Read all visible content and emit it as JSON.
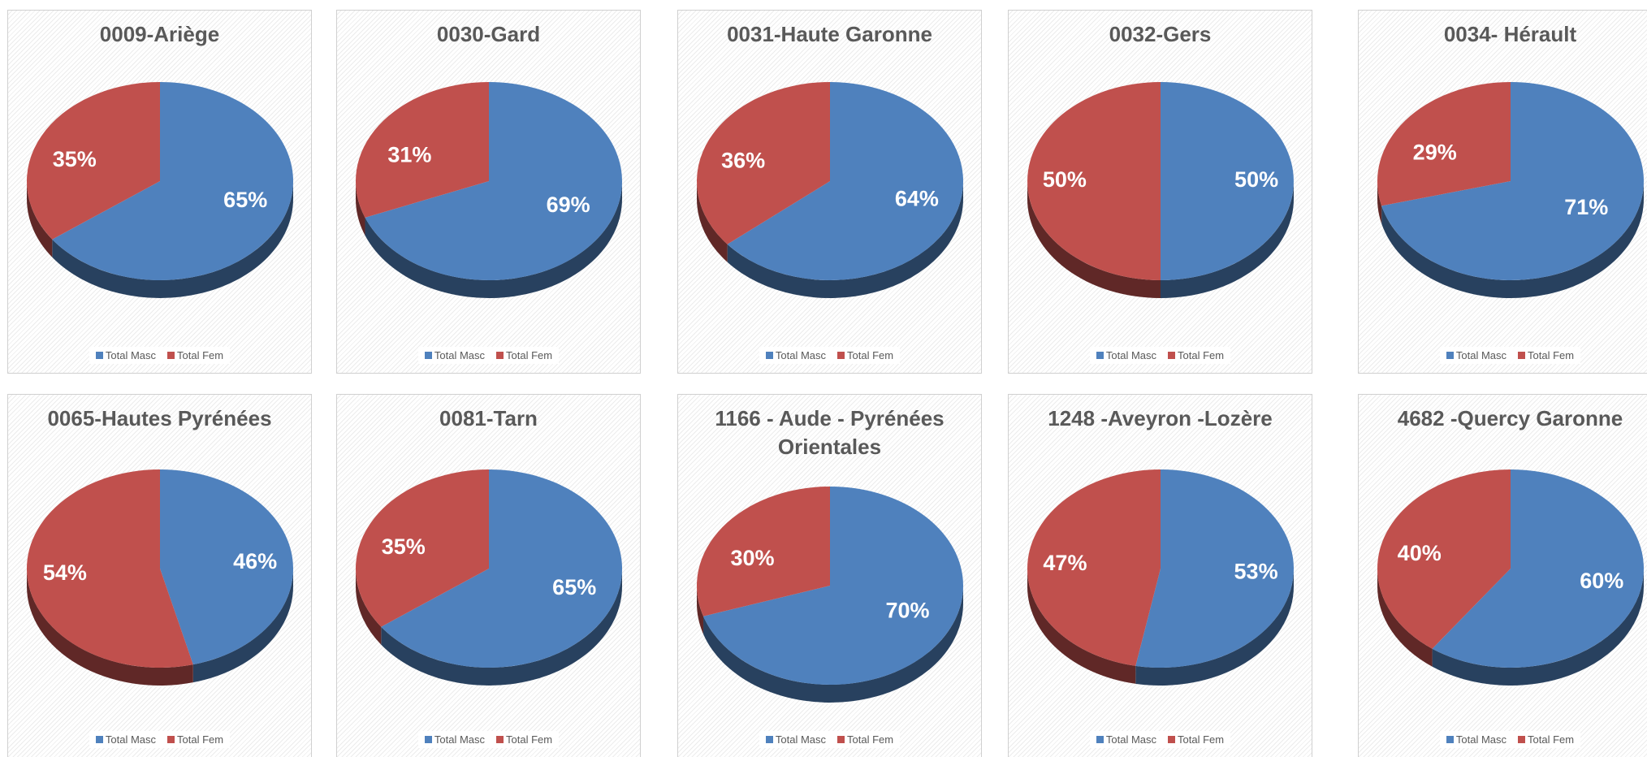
{
  "chart_data": [
    {
      "type": "pie",
      "title": "0009-Ariège",
      "categories": [
        "Total Masc",
        "Total Fem"
      ],
      "values": [
        65,
        35
      ],
      "value_labels": [
        "65%",
        "35%"
      ],
      "colors": [
        "#4f81bd",
        "#c0504d"
      ]
    },
    {
      "type": "pie",
      "title": "0030-Gard",
      "categories": [
        "Total Masc",
        "Total Fem"
      ],
      "values": [
        69,
        31
      ],
      "value_labels": [
        "69%",
        "31%"
      ],
      "colors": [
        "#4f81bd",
        "#c0504d"
      ]
    },
    {
      "type": "pie",
      "title": "0031-Haute Garonne",
      "categories": [
        "Total Masc",
        "Total Fem"
      ],
      "values": [
        64,
        36
      ],
      "value_labels": [
        "64%",
        "36%"
      ],
      "colors": [
        "#4f81bd",
        "#c0504d"
      ]
    },
    {
      "type": "pie",
      "title": "0032-Gers",
      "categories": [
        "Total Masc",
        "Total Fem"
      ],
      "values": [
        50,
        50
      ],
      "value_labels": [
        "50%",
        "50%"
      ],
      "colors": [
        "#4f81bd",
        "#c0504d"
      ]
    },
    {
      "type": "pie",
      "title": "0034- Hérault",
      "categories": [
        "Total Masc",
        "Total Fem"
      ],
      "values": [
        71,
        29
      ],
      "value_labels": [
        "71%",
        "29%"
      ],
      "colors": [
        "#4f81bd",
        "#c0504d"
      ]
    },
    {
      "type": "pie",
      "title": "0065-Hautes Pyrénées",
      "categories": [
        "Total Masc",
        "Total Fem"
      ],
      "values": [
        46,
        54
      ],
      "value_labels": [
        "46%",
        "54%"
      ],
      "colors": [
        "#4f81bd",
        "#c0504d"
      ]
    },
    {
      "type": "pie",
      "title": "0081-Tarn",
      "categories": [
        "Total Masc",
        "Total Fem"
      ],
      "values": [
        65,
        35
      ],
      "value_labels": [
        "65%",
        "35%"
      ],
      "colors": [
        "#4f81bd",
        "#c0504d"
      ]
    },
    {
      "type": "pie",
      "title": "1166 - Aude - Pyrénées Orientales",
      "categories": [
        "Total Masc",
        "Total Fem"
      ],
      "values": [
        70,
        30
      ],
      "value_labels": [
        "70%",
        "30%"
      ],
      "colors": [
        "#4f81bd",
        "#c0504d"
      ]
    },
    {
      "type": "pie",
      "title": "1248 -Aveyron -Lozère",
      "categories": [
        "Total Masc",
        "Total Fem"
      ],
      "values": [
        53,
        47
      ],
      "value_labels": [
        "53%",
        "47%"
      ],
      "colors": [
        "#4f81bd",
        "#c0504d"
      ]
    },
    {
      "type": "pie",
      "title": "4682 -Quercy Garonne",
      "categories": [
        "Total Masc",
        "Total Fem"
      ],
      "values": [
        60,
        40
      ],
      "value_labels": [
        "60%",
        "40%"
      ],
      "colors": [
        "#4f81bd",
        "#c0504d"
      ]
    }
  ]
}
